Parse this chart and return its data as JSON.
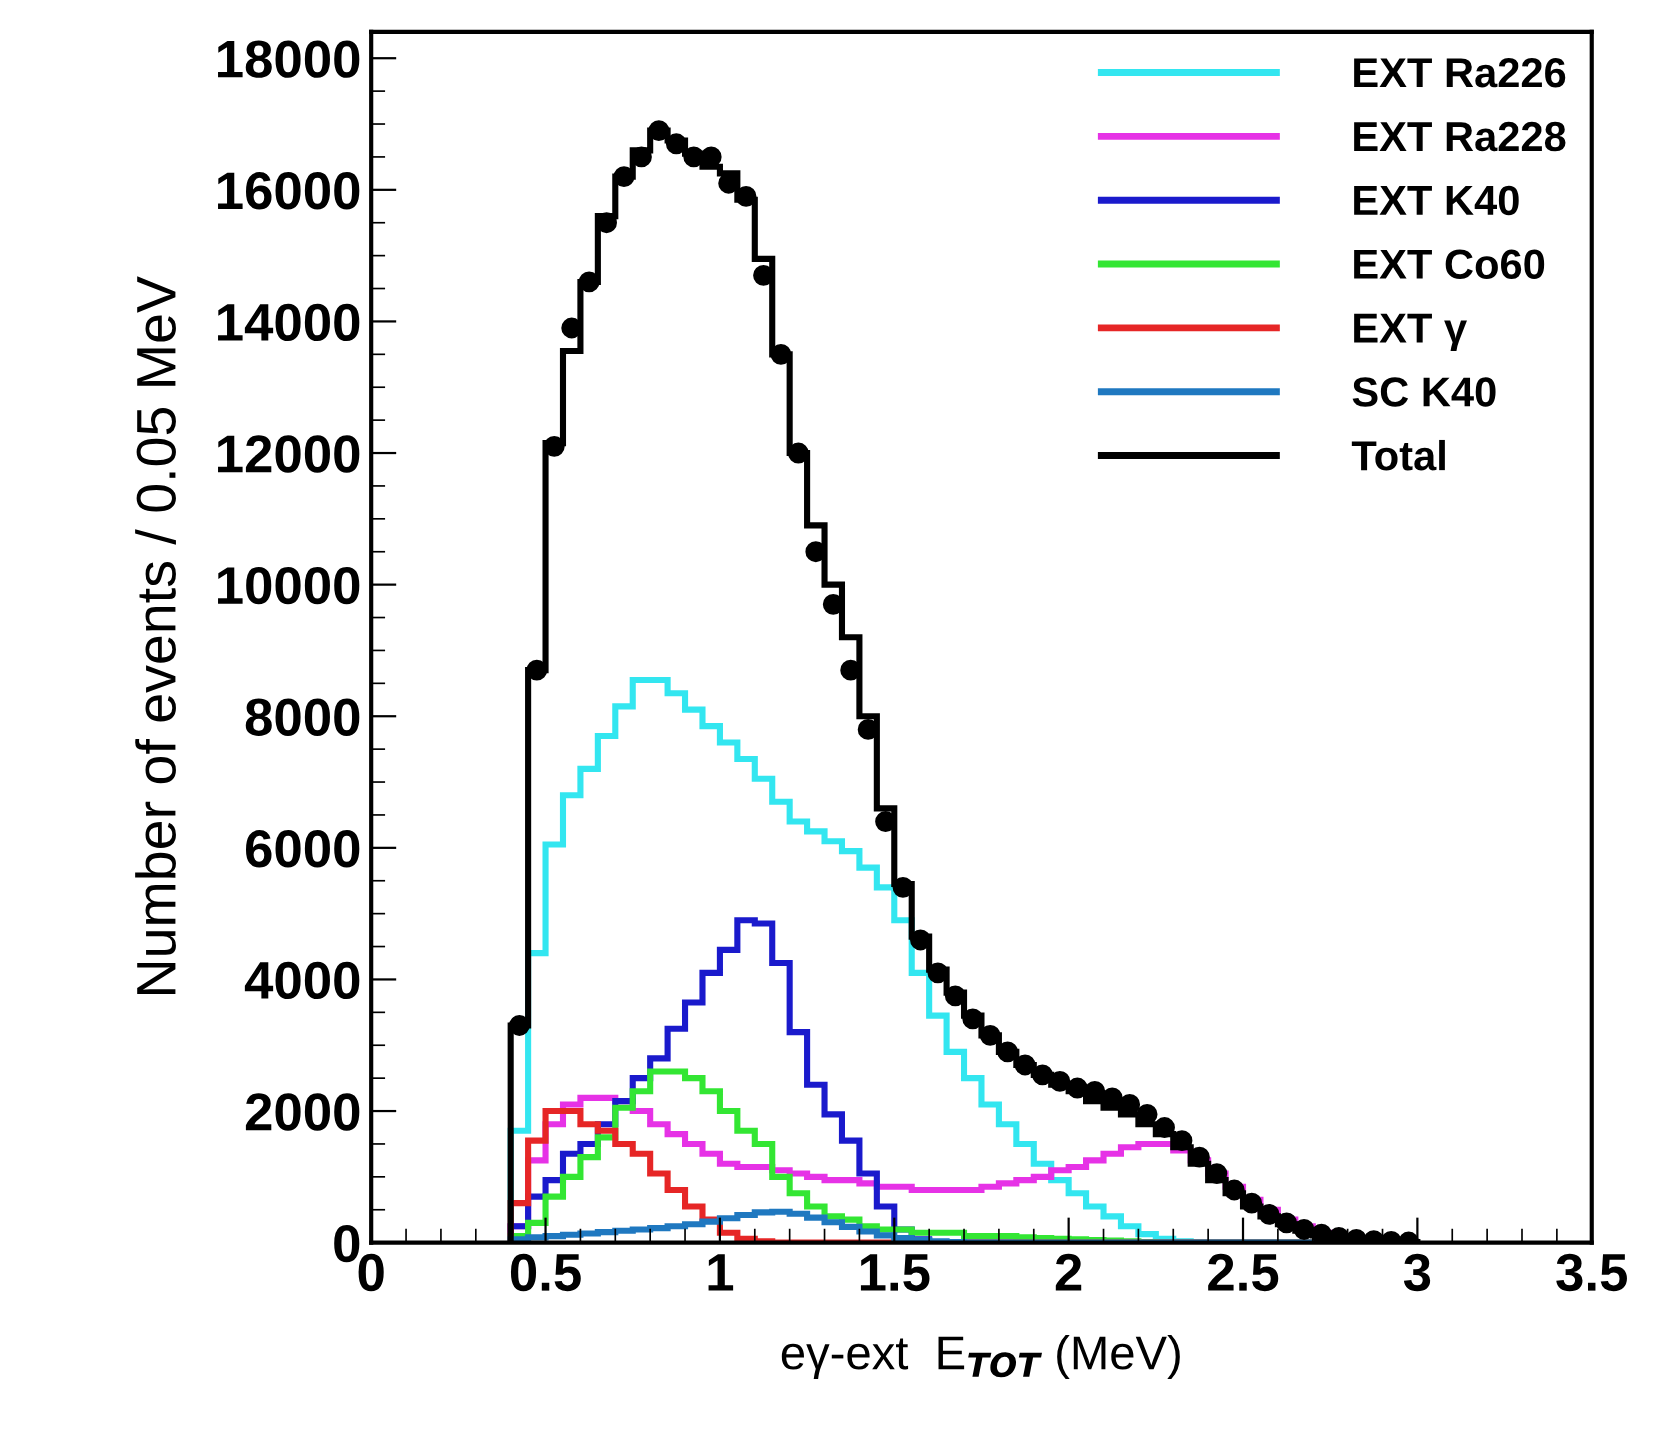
{
  "chart_data": {
    "type": "histogram",
    "xlabel": "eγ-ext  E$_{TOT}$ (MeV)",
    "ylabel": "Number of events / 0.05 MeV",
    "bins": [
      0.4,
      0.45,
      0.5,
      0.55,
      0.6,
      0.65,
      0.7,
      0.75,
      0.8,
      0.85,
      0.9,
      0.95,
      1.0,
      1.05,
      1.1,
      1.15,
      1.2,
      1.25,
      1.3,
      1.35,
      1.4,
      1.45,
      1.5,
      1.55,
      1.6,
      1.65,
      1.7,
      1.75,
      1.8,
      1.85,
      1.9,
      1.95,
      2.0,
      2.05,
      2.1,
      2.15,
      2.2,
      2.25,
      2.3,
      2.35,
      2.4,
      2.45,
      2.5,
      2.55,
      2.6,
      2.65,
      2.7,
      2.75,
      2.8,
      2.85,
      2.9,
      2.95,
      3.0
    ],
    "series": [
      {
        "name": "EXT Ra226",
        "color": "#33e6f0",
        "values": [
          1700,
          4400,
          6050,
          6800,
          7200,
          7700,
          8150,
          8550,
          8550,
          8350,
          8100,
          7850,
          7600,
          7350,
          7050,
          6700,
          6400,
          6250,
          6100,
          5950,
          5700,
          5400,
          4900,
          4100,
          3450,
          2900,
          2500,
          2100,
          1800,
          1500,
          1200,
          950,
          750,
          550,
          400,
          250,
          130,
          60,
          20,
          0,
          0,
          0,
          0,
          0,
          0,
          0,
          0,
          0,
          0,
          0,
          0,
          0
        ]
      },
      {
        "name": "EXT Ra228",
        "color": "#e632e6",
        "values": [
          250,
          1250,
          1800,
          2100,
          2200,
          2200,
          2150,
          2000,
          1800,
          1650,
          1500,
          1350,
          1200,
          1150,
          1150,
          1100,
          1050,
          1000,
          950,
          950,
          900,
          850,
          850,
          800,
          800,
          800,
          800,
          850,
          900,
          950,
          1000,
          1100,
          1150,
          1250,
          1350,
          1450,
          1500,
          1500,
          1400,
          1250,
          1050,
          850,
          650,
          500,
          350,
          250,
          150,
          80,
          40,
          20,
          10,
          0
        ]
      },
      {
        "name": "EXT K40",
        "color": "#1a1acc",
        "values": [
          250,
          700,
          950,
          1350,
          1500,
          1800,
          2150,
          2500,
          2800,
          3250,
          3650,
          4100,
          4450,
          4900,
          4850,
          4250,
          3200,
          2400,
          1950,
          1550,
          1050,
          550,
          200,
          50,
          0,
          0,
          0,
          0,
          0,
          0,
          0,
          0,
          0,
          0,
          0,
          0,
          0,
          0,
          0,
          0,
          0,
          0,
          0,
          0,
          0,
          0,
          0,
          0,
          0,
          0,
          0,
          0
        ]
      },
      {
        "name": "EXT Co60",
        "color": "#33e633",
        "values": [
          100,
          300,
          700,
          1000,
          1300,
          1600,
          2050,
          2300,
          2600,
          2600,
          2500,
          2300,
          2000,
          1700,
          1500,
          1000,
          750,
          550,
          400,
          350,
          250,
          200,
          200,
          150,
          150,
          150,
          100,
          100,
          100,
          80,
          70,
          60,
          50,
          40,
          30,
          20,
          10,
          0,
          0,
          0,
          0,
          0,
          0,
          0,
          0,
          0,
          0,
          0,
          0,
          0,
          0,
          0
        ]
      },
      {
        "name": "EXT γ",
        "color": "#e62626",
        "values": [
          600,
          1550,
          2000,
          2000,
          1800,
          1700,
          1500,
          1350,
          1050,
          800,
          550,
          350,
          150,
          60,
          20,
          0,
          0,
          0,
          0,
          0,
          0,
          0,
          0,
          0,
          0,
          0,
          0,
          0,
          0,
          0,
          0,
          0,
          0,
          0,
          0,
          0,
          0,
          0,
          0,
          0,
          0,
          0,
          0,
          0,
          0,
          0,
          0,
          0,
          0,
          0,
          0,
          0
        ]
      },
      {
        "name": "SC K40",
        "color": "#1f78c0",
        "values": [
          50,
          80,
          100,
          120,
          140,
          160,
          180,
          200,
          220,
          250,
          280,
          320,
          370,
          420,
          460,
          470,
          440,
          380,
          310,
          240,
          170,
          110,
          70,
          40,
          20,
          10,
          0,
          0,
          0,
          0,
          0,
          0,
          0,
          0,
          0,
          0,
          0,
          0,
          0,
          0,
          0,
          0,
          0,
          0,
          0,
          0,
          0,
          0,
          0,
          0,
          0,
          0
        ]
      },
      {
        "name": "Total",
        "color": "#000000",
        "values": [
          3300,
          8700,
          12150,
          13550,
          14600,
          15600,
          16200,
          16600,
          16900,
          16750,
          16550,
          16350,
          16250,
          15850,
          14950,
          13500,
          12000,
          10900,
          10000,
          9200,
          8000,
          6600,
          5450,
          4650,
          4150,
          3800,
          3450,
          3150,
          2900,
          2700,
          2550,
          2400,
          2300,
          2150,
          2050,
          1950,
          1800,
          1650,
          1450,
          1200,
          950,
          750,
          550,
          400,
          280,
          180,
          110,
          60,
          30,
          20,
          10,
          10
        ]
      },
      {
        "type": "scatter",
        "color": "#000000",
        "marker": "circle",
        "x": [
          0.425,
          0.475,
          0.525,
          0.575,
          0.625,
          0.675,
          0.725,
          0.775,
          0.825,
          0.875,
          0.925,
          0.975,
          1.025,
          1.075,
          1.125,
          1.175,
          1.225,
          1.275,
          1.325,
          1.375,
          1.425,
          1.475,
          1.525,
          1.575,
          1.625,
          1.675,
          1.725,
          1.775,
          1.825,
          1.875,
          1.925,
          1.975,
          2.025,
          2.075,
          2.125,
          2.175,
          2.225,
          2.275,
          2.325,
          2.375,
          2.425,
          2.475,
          2.525,
          2.575,
          2.625,
          2.675,
          2.725,
          2.775,
          2.825,
          2.875,
          2.925,
          2.975
        ],
        "values": [
          3300,
          8700,
          12100,
          13900,
          14600,
          15500,
          16200,
          16500,
          16900,
          16700,
          16500,
          16500,
          16100,
          15900,
          14700,
          13500,
          12000,
          10500,
          9700,
          8700,
          7800,
          6400,
          5400,
          4600,
          4100,
          3750,
          3400,
          3150,
          2900,
          2700,
          2550,
          2450,
          2350,
          2300,
          2200,
          2100,
          1950,
          1750,
          1550,
          1300,
          1050,
          800,
          600,
          430,
          300,
          200,
          130,
          80,
          50,
          30,
          20,
          10
        ]
      }
    ],
    "xlim": [
      0,
      3.5
    ],
    "xticks": [
      0,
      0.5,
      1,
      1.5,
      2,
      2.5,
      3,
      3.5
    ],
    "ylim": [
      0,
      18400
    ],
    "yticks": [
      0,
      2000,
      4000,
      6000,
      8000,
      10000,
      12000,
      14000,
      16000,
      18000
    ],
    "legend": "top right",
    "grid": false
  }
}
